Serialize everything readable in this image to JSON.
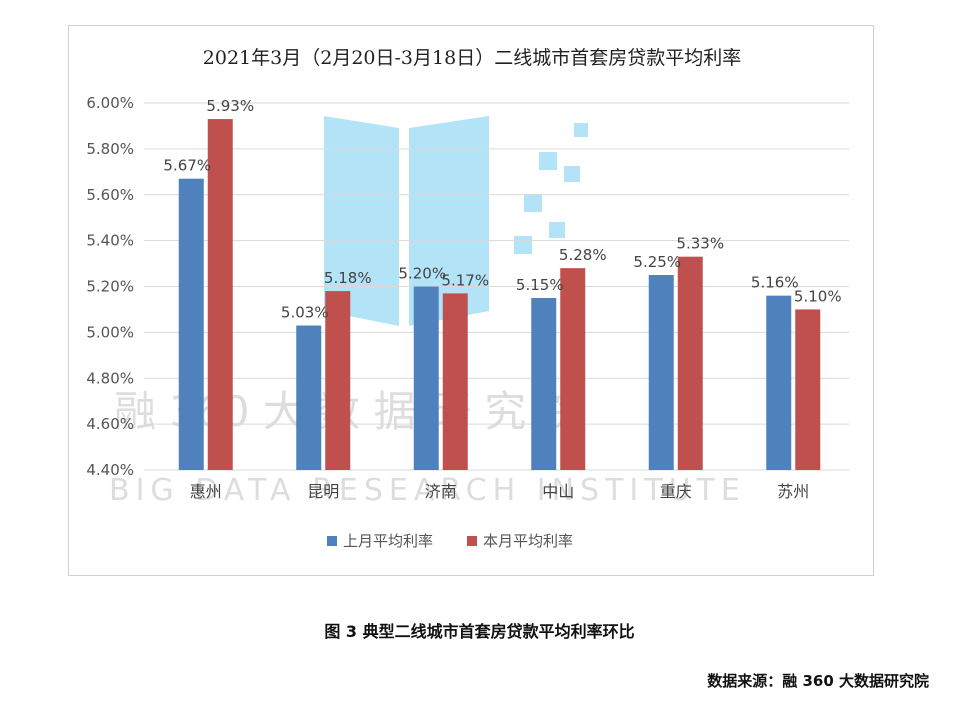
{
  "chart_data": {
    "type": "bar",
    "title": "2021年3月（2月20日-3月18日）二线城市首套房贷款平均利率",
    "categories": [
      "惠州",
      "昆明",
      "济南",
      "中山",
      "重庆",
      "苏州"
    ],
    "series": [
      {
        "name": "上月平均利率",
        "color": "#4f81bd",
        "values": [
          5.67,
          5.03,
          5.2,
          5.15,
          5.25,
          5.16
        ],
        "labels": [
          "5.67%",
          "5.03%",
          "5.20%",
          "5.15%",
          "5.25%",
          "5.16%"
        ]
      },
      {
        "name": "本月平均利率",
        "color": "#c0504d",
        "values": [
          5.93,
          5.18,
          5.17,
          5.28,
          5.33,
          5.1
        ],
        "labels": [
          "5.93%",
          "5.18%",
          "5.17%",
          "5.28%",
          "5.33%",
          "5.10%"
        ]
      }
    ],
    "yticks": [
      "4.40%",
      "4.60%",
      "4.80%",
      "5.00%",
      "5.20%",
      "5.40%",
      "5.60%",
      "5.80%",
      "6.00%"
    ],
    "ylim": [
      4.4,
      6.0
    ],
    "grid": true,
    "legend_position": "bottom"
  },
  "watermark": {
    "chinese": "融 360 大 数 据 研 究 院",
    "english": "BIG DATA RESEARCH INSTITUTE"
  },
  "caption": "图 3 典型二线城市首套房贷款平均利率环比",
  "source": "数据来源：融 360 大数据研究院"
}
